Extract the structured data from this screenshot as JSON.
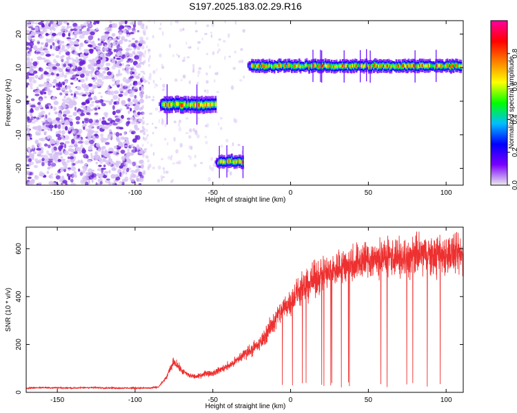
{
  "title": "S197.2025.183.02.29.R16",
  "colors": {
    "background": "#ffffff",
    "snr_line": "#ee3030",
    "speckle_light": "#d8c4f4",
    "speckle_dark": "#6a1fd8",
    "colorbar_stops": [
      "#ececec",
      "#7a00ff",
      "#0000ff",
      "#00bfff",
      "#00ff00",
      "#ffff00",
      "#ff8000",
      "#ff0000",
      "#ff00a0"
    ]
  },
  "chart_data": [
    {
      "type": "heatmap",
      "name": "spectrogram",
      "xlabel": "Height of straight line (km)",
      "ylabel": "Frequency (Hz)",
      "xlim": [
        -170,
        111
      ],
      "ylim": [
        -25,
        24
      ],
      "x_ticks": [
        -150,
        -100,
        -50,
        0,
        50,
        100
      ],
      "x_tick_labels": [
        "-150",
        "-100",
        "-50",
        "0",
        "50",
        "100"
      ],
      "y_ticks": [
        20,
        10,
        0,
        -10,
        -20
      ],
      "y_tick_labels": [
        "20",
        "10",
        "0",
        "-10",
        "-20"
      ],
      "colorbar": {
        "label": "Normalized spectral amplitude",
        "range": [
          0,
          1
        ],
        "ticks": [
          0.0,
          0.2,
          0.4,
          0.6,
          0.8
        ],
        "tick_labels": [
          "0.0",
          "0.2",
          "0.4",
          "0.6",
          "0.8"
        ]
      },
      "features": [
        {
          "type": "noise",
          "x_range": [
            -170,
            -95
          ],
          "freq_range": [
            -25,
            24
          ]
        },
        {
          "type": "band",
          "x_range": [
            -85,
            -48
          ],
          "freq_center": -1,
          "freq_width": 5
        },
        {
          "type": "band",
          "x_range": [
            -49,
            -30
          ],
          "freq_center": -18,
          "freq_width": 4
        },
        {
          "type": "band",
          "x_range": [
            -28,
            110
          ],
          "freq_center": 10.5,
          "freq_width": 4
        }
      ]
    },
    {
      "type": "line",
      "name": "snr",
      "xlabel": "Height of straight line (km)",
      "ylabel": "SNR (10 * v/v)",
      "xlim": [
        -170,
        111
      ],
      "ylim": [
        0,
        690
      ],
      "x_ticks": [
        -150,
        -100,
        -50,
        0,
        50,
        100
      ],
      "x_tick_labels": [
        "-150",
        "-100",
        "-50",
        "0",
        "50",
        "100"
      ],
      "y_ticks": [
        0,
        200,
        400,
        600
      ],
      "y_tick_labels": [
        "0",
        "200",
        "400",
        "600"
      ],
      "x": [
        -170,
        -160,
        -150,
        -140,
        -130,
        -120,
        -110,
        -100,
        -90,
        -85,
        -80,
        -75,
        -70,
        -65,
        -60,
        -55,
        -50,
        -45,
        -40,
        -35,
        -30,
        -25,
        -20,
        -15,
        -10,
        -5,
        0,
        5,
        10,
        15,
        20,
        25,
        30,
        35,
        40,
        45,
        50,
        55,
        60,
        65,
        70,
        75,
        80,
        85,
        90,
        95,
        100,
        105,
        110
      ],
      "y": [
        18,
        20,
        19,
        18,
        20,
        19,
        18,
        18,
        18,
        22,
        60,
        130,
        90,
        70,
        65,
        80,
        80,
        95,
        110,
        130,
        160,
        180,
        200,
        250,
        300,
        350,
        380,
        420,
        440,
        470,
        490,
        500,
        520,
        530,
        540,
        550,
        555,
        560,
        555,
        570,
        560,
        555,
        570,
        580,
        565,
        570,
        580,
        575,
        570
      ]
    }
  ]
}
